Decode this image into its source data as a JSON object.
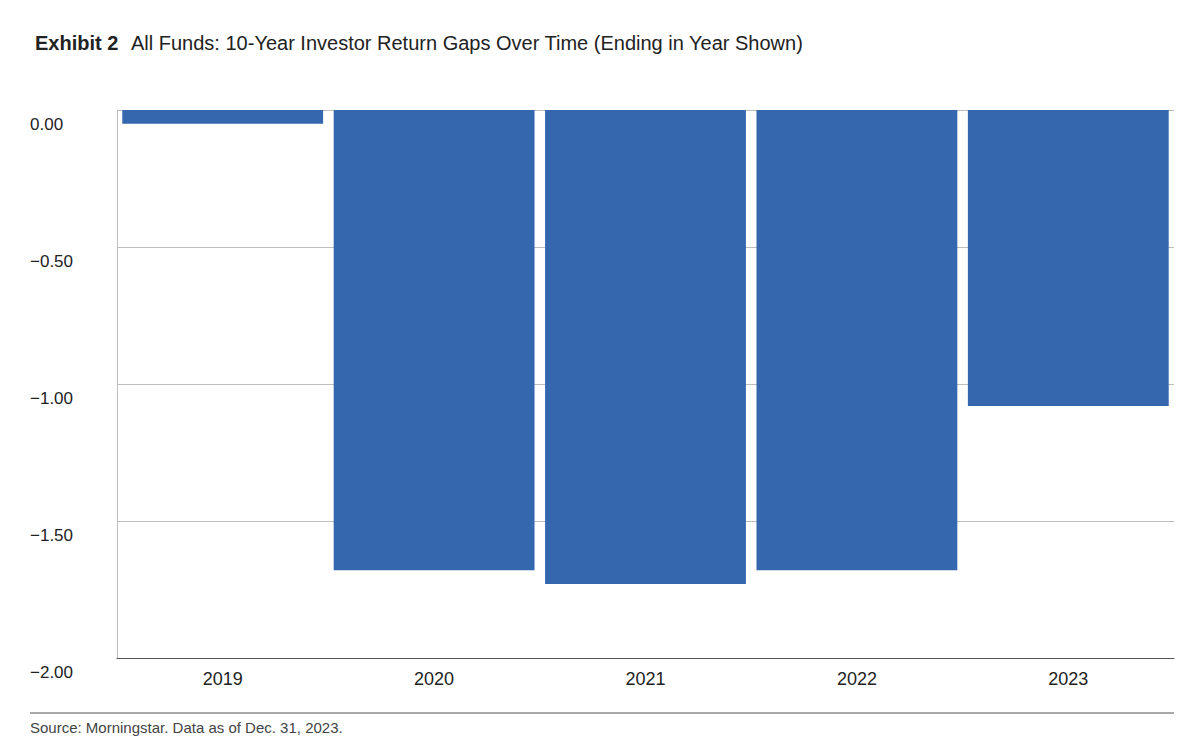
{
  "chart_data": {
    "type": "bar",
    "title": "Exhibit 2",
    "subtitle": "All Funds: 10-Year Investor Return Gaps Over Time (Ending in Year Shown)",
    "annotations": [
      "Source: Morningstar. Data as of Dec. 31, 2023."
    ],
    "categories": [
      "2019",
      "2020",
      "2021",
      "2022",
      "2023"
    ],
    "values": [
      -0.05,
      -1.68,
      -1.73,
      -1.68,
      -1.08
    ],
    "color": "#3567ae",
    "ylim": [
      -2,
      0
    ],
    "yticks": [
      {
        "value": -2,
        "label": "−2.00"
      },
      {
        "value": -1.5,
        "label": "−1.50"
      },
      {
        "value": -1,
        "label": "−1.00"
      },
      {
        "value": -0.5,
        "label": "−0.50"
      },
      {
        "value": 0,
        "label": "0.00"
      }
    ],
    "grid": true
  }
}
